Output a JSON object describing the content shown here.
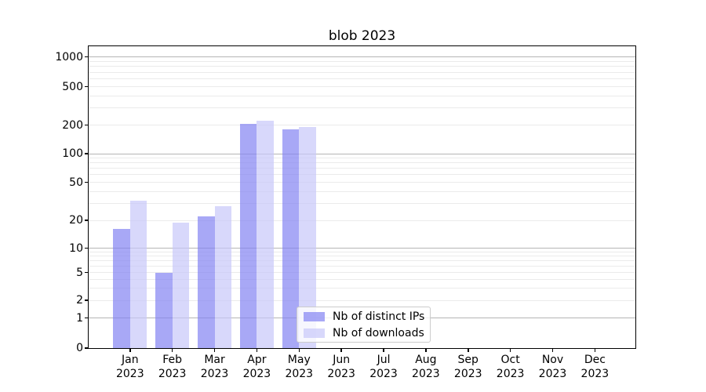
{
  "figure": {
    "title": "blob 2023",
    "background_color": "#ffffff"
  },
  "chart_data": {
    "type": "bar",
    "title": "blob 2023",
    "categories": [
      {
        "month": "Jan",
        "year": "2023"
      },
      {
        "month": "Feb",
        "year": "2023"
      },
      {
        "month": "Mar",
        "year": "2023"
      },
      {
        "month": "Apr",
        "year": "2023"
      },
      {
        "month": "May",
        "year": "2023"
      },
      {
        "month": "Jun",
        "year": "2023"
      },
      {
        "month": "Jul",
        "year": "2023"
      },
      {
        "month": "Aug",
        "year": "2023"
      },
      {
        "month": "Sep",
        "year": "2023"
      },
      {
        "month": "Oct",
        "year": "2023"
      },
      {
        "month": "Nov",
        "year": "2023"
      },
      {
        "month": "Dec",
        "year": "2023"
      }
    ],
    "series": [
      {
        "name": "Nb of distinct IPs",
        "color": "#8383f2",
        "values": [
          16,
          5,
          22,
          205,
          180,
          0,
          0,
          0,
          0,
          0,
          0,
          0
        ]
      },
      {
        "name": "Nb of downloads",
        "color": "#c8c8f9",
        "values": [
          32,
          19,
          28,
          220,
          190,
          0,
          0,
          0,
          0,
          0,
          0,
          0
        ]
      }
    ],
    "xlabel": "",
    "ylabel": "",
    "yticks": [
      0,
      1,
      2,
      5,
      10,
      20,
      50,
      100,
      200,
      500,
      1000
    ],
    "yscale": "symlog",
    "ylim": [
      0,
      1250
    ],
    "grid": "horizontal, log minor + major",
    "legend_position": "inside bottom, center-right",
    "colors": {
      "grid_major": "#b5b5b5",
      "grid_minor": "#ebebeb",
      "spine": "#000000",
      "legend_border": "#cccccc"
    }
  }
}
